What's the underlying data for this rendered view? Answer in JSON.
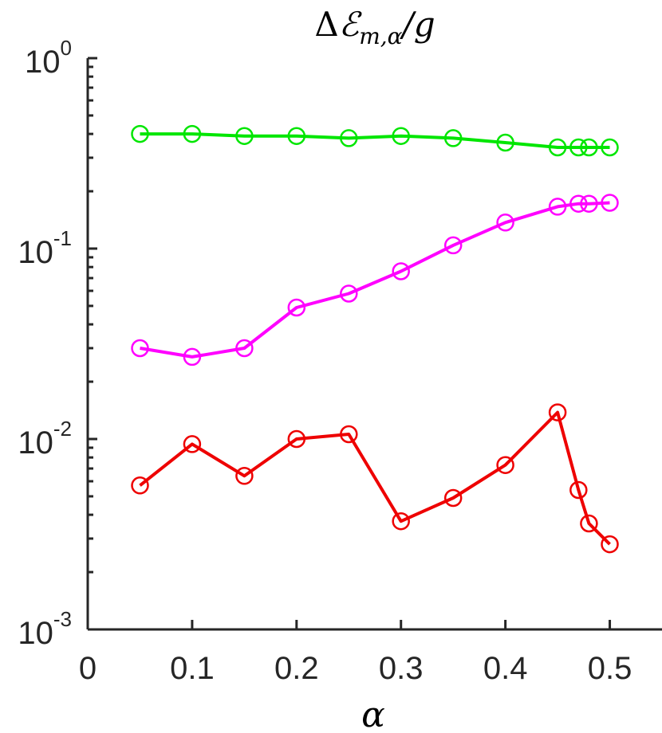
{
  "chart_data": {
    "type": "line",
    "title": "ΔE_{m,α}/g",
    "title_parts": {
      "delta": "Δ",
      "E": "ℰ",
      "sub": "m,α",
      "rest": "/g"
    },
    "xlabel": "α",
    "ylabel": "",
    "xlim": [
      0,
      0.55
    ],
    "ylim": [
      0.001,
      1
    ],
    "yscale": "log",
    "grid": false,
    "x_ticks": [
      {
        "value": 0,
        "label": "0"
      },
      {
        "value": 0.1,
        "label": "0.1"
      },
      {
        "value": 0.2,
        "label": "0.2"
      },
      {
        "value": 0.3,
        "label": "0.3"
      },
      {
        "value": 0.4,
        "label": "0.4"
      },
      {
        "value": 0.5,
        "label": "0.5"
      }
    ],
    "y_ticks": [
      {
        "value": 1,
        "base": "10",
        "exp": "0"
      },
      {
        "value": 0.1,
        "base": "10",
        "exp": "-1"
      },
      {
        "value": 0.01,
        "base": "10",
        "exp": "-2"
      },
      {
        "value": 0.001,
        "base": "10",
        "exp": "-3"
      }
    ],
    "x": [
      0.05,
      0.1,
      0.15,
      0.2,
      0.25,
      0.3,
      0.35,
      0.4,
      0.45,
      0.47,
      0.48,
      0.5
    ],
    "series": [
      {
        "color": "#00e600",
        "marker": "circle",
        "values": [
          0.4,
          0.4,
          0.39,
          0.39,
          0.38,
          0.39,
          0.38,
          0.36,
          0.34,
          0.34,
          0.34,
          0.34
        ]
      },
      {
        "color": "#ff00ff",
        "marker": "circle",
        "values": [
          0.03,
          0.027,
          0.03,
          0.049,
          0.058,
          0.076,
          0.104,
          0.137,
          0.166,
          0.172,
          0.172,
          0.174
        ]
      },
      {
        "color": "#ee0000",
        "marker": "circle",
        "values": [
          0.0057,
          0.0094,
          0.0064,
          0.01,
          0.0106,
          0.0037,
          0.0049,
          0.0073,
          0.0138,
          0.0054,
          0.0036,
          0.0028
        ]
      }
    ]
  }
}
